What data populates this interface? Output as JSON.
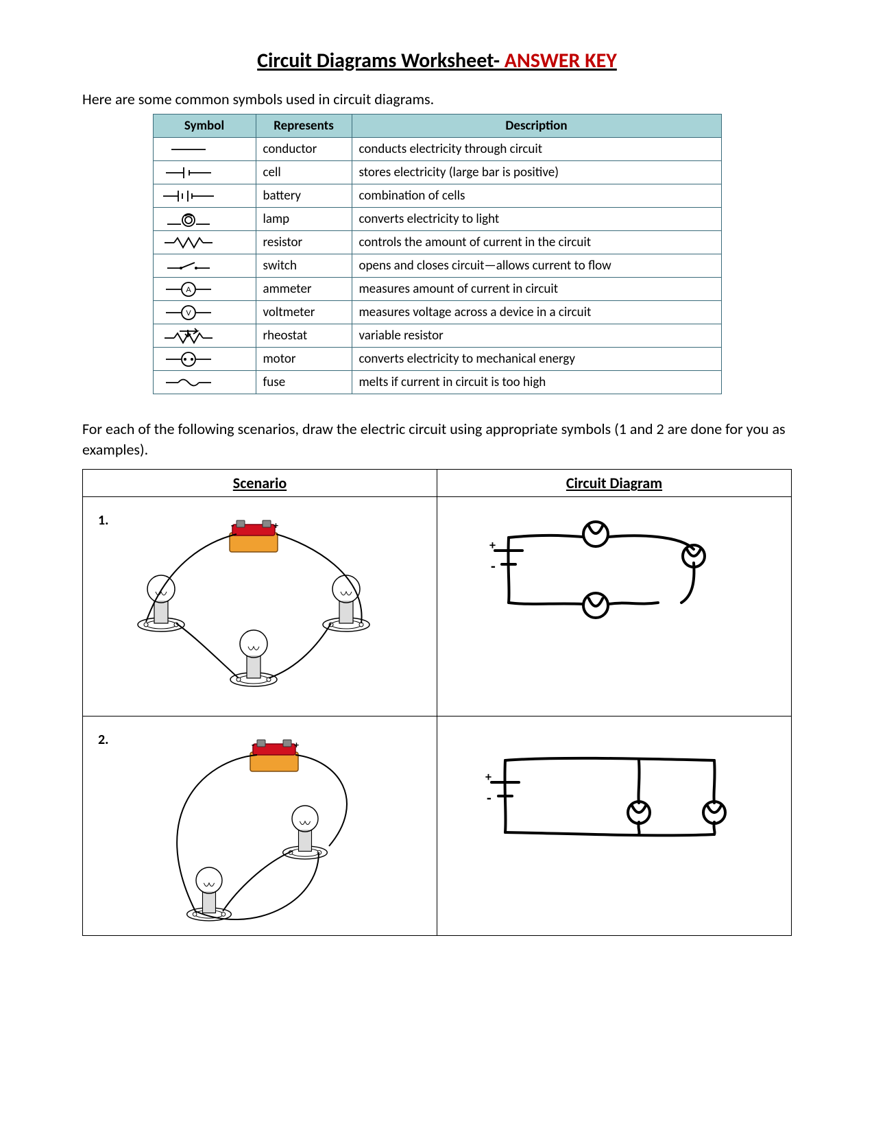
{
  "title_main": "Circuit Diagrams Worksheet-",
  "title_answer": " ANSWER KEY",
  "intro": "Here are some common symbols used in circuit diagrams.",
  "sym_table": {
    "headers": [
      "Symbol",
      "Represents",
      "Description"
    ],
    "header_bg": "#a7d3d7",
    "border_color": "#3a6b7a",
    "rows": [
      {
        "symbol": "conductor",
        "represents": "conductor",
        "description": "conducts electricity through circuit"
      },
      {
        "symbol": "cell",
        "represents": "cell",
        "description": "stores electricity (large bar is positive)"
      },
      {
        "symbol": "battery",
        "represents": "battery",
        "description": "combination of cells"
      },
      {
        "symbol": "lamp",
        "represents": "lamp",
        "description": "converts electricity to light"
      },
      {
        "symbol": "resistor",
        "represents": "resistor",
        "description": "controls the amount of current in the circuit"
      },
      {
        "symbol": "switch",
        "represents": "switch",
        "description": "opens and closes circuit—allows current to flow"
      },
      {
        "symbol": "ammeter",
        "represents": "ammeter",
        "description": "measures amount of current in circuit"
      },
      {
        "symbol": "voltmeter",
        "represents": "voltmeter",
        "description": "measures voltage across a device in a circuit"
      },
      {
        "symbol": "rheostat",
        "represents": "rheostat",
        "description": "variable resistor"
      },
      {
        "symbol": "motor",
        "represents": "motor",
        "description": "converts electricity to mechanical energy"
      },
      {
        "symbol": "fuse",
        "represents": "fuse",
        "description": "melts if current in circuit is too high"
      }
    ]
  },
  "instructions": "For each of the following scenarios, draw the electric circuit using appropriate symbols (1 and 2 are done for you as examples).",
  "scenario_table": {
    "headers": [
      "Scenario",
      "Circuit Diagram"
    ],
    "rows": [
      {
        "num": "1.",
        "scenario": {
          "type": "series",
          "battery_color_body": "#f0a030",
          "battery_color_top": "#d01020",
          "bulb_count": 3,
          "wire_color": "#000000"
        },
        "diagram": {
          "type": "series-3-lamps",
          "stroke": "#000000",
          "stroke_width": 4,
          "plus": "+",
          "minus": "-"
        }
      },
      {
        "num": "2.",
        "scenario": {
          "type": "parallel",
          "battery_color_body": "#f0a030",
          "battery_color_top": "#d01020",
          "bulb_count": 2,
          "wire_color": "#000000"
        },
        "diagram": {
          "type": "parallel-2-lamps",
          "stroke": "#000000",
          "stroke_width": 4,
          "plus": "+",
          "minus": "-"
        }
      }
    ]
  },
  "colors": {
    "answer_key": "#c00000",
    "page_bg": "#ffffff",
    "text": "#000000"
  }
}
